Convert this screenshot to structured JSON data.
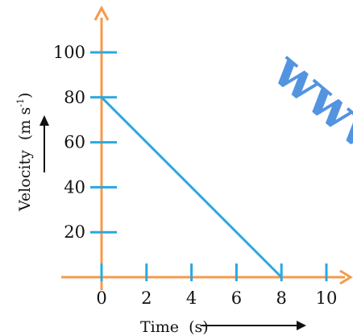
{
  "chart_data": {
    "type": "line",
    "title": "",
    "xlabel": "Time  (s)",
    "ylabel": "Velocity  (m s",
    "ylabel_superscript": "-1",
    "ylabel_close": ")",
    "x": [
      0,
      8
    ],
    "series": [
      {
        "values": [
          80,
          0
        ]
      }
    ],
    "xticks": [
      0,
      2,
      4,
      6,
      8,
      10
    ],
    "yticks": [
      20,
      40,
      60,
      80,
      100
    ],
    "xlim": [
      0,
      10
    ],
    "ylim": [
      0,
      100
    ],
    "grid": false,
    "colors": {
      "axes": "#F59A4A",
      "ticks": "#2AA8E0",
      "line": "#2AA8E0",
      "arrows": "#111111",
      "watermark": "#4A8FE0"
    }
  },
  "watermark": {
    "text": "www",
    "color": "#4A8FE0"
  }
}
